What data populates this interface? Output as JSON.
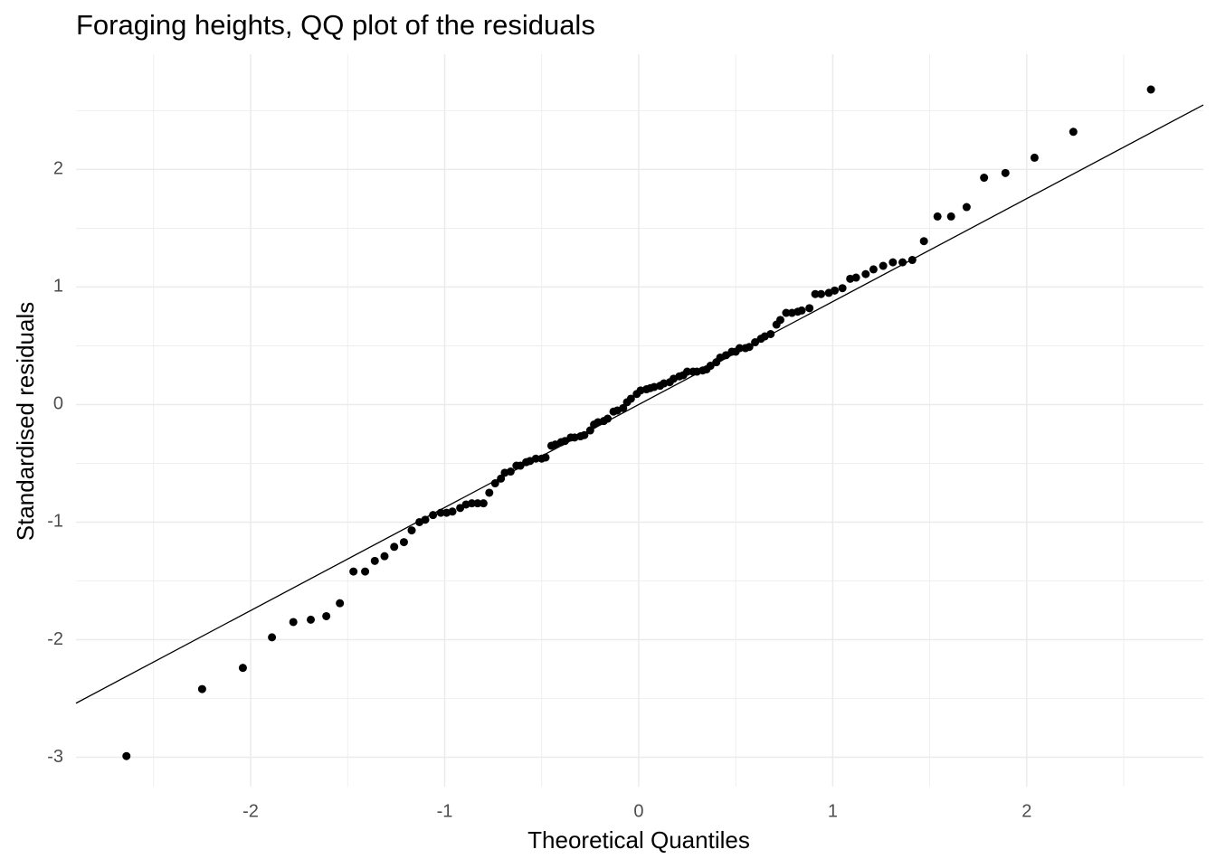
{
  "chart_data": {
    "type": "scatter",
    "title": "Foraging heights, QQ plot of the residuals",
    "x_label": "Theoretical Quantiles",
    "y_label": "Standardised residuals",
    "xlim": [
      -2.9,
      2.91
    ],
    "ylim": [
      -3.25,
      2.98
    ],
    "xticks": [
      -2,
      -1,
      0,
      1,
      2
    ],
    "yticks": [
      -3,
      -2,
      -1,
      0,
      1,
      2
    ],
    "xminor": [
      -2.5,
      -1.5,
      -0.5,
      0.5,
      1.5,
      2.5
    ],
    "yminor": [
      -2.5,
      -1.5,
      -0.5,
      0.5,
      1.5,
      2.5
    ],
    "grid": true,
    "color": "#000000",
    "reference_line": {
      "slope": 0.876,
      "intercept": 0.0
    },
    "x": [
      -2.64,
      -2.25,
      -2.04,
      -1.89,
      -1.78,
      -1.69,
      -1.61,
      -1.54,
      -1.47,
      -1.41,
      -1.36,
      -1.31,
      -1.26,
      -1.21,
      -1.17,
      -1.13,
      -1.1,
      -1.06,
      -1.02,
      -0.99,
      -0.96,
      -0.92,
      -0.89,
      -0.86,
      -0.83,
      -0.8,
      -0.77,
      -0.74,
      -0.71,
      -0.69,
      -0.66,
      -0.63,
      -0.61,
      -0.58,
      -0.56,
      -0.53,
      -0.5,
      -0.48,
      -0.45,
      -0.43,
      -0.4,
      -0.38,
      -0.35,
      -0.33,
      -0.3,
      -0.28,
      -0.25,
      -0.23,
      -0.21,
      -0.18,
      -0.16,
      -0.13,
      -0.11,
      -0.08,
      -0.06,
      -0.04,
      -0.01,
      0.01,
      0.04,
      0.06,
      0.08,
      0.11,
      0.13,
      0.16,
      0.18,
      0.21,
      0.23,
      0.25,
      0.28,
      0.3,
      0.33,
      0.35,
      0.37,
      0.4,
      0.42,
      0.45,
      0.48,
      0.5,
      0.52,
      0.55,
      0.57,
      0.6,
      0.63,
      0.65,
      0.68,
      0.71,
      0.73,
      0.76,
      0.79,
      0.82,
      0.84,
      0.88,
      0.91,
      0.94,
      0.98,
      1.01,
      1.05,
      1.09,
      1.12,
      1.17,
      1.21,
      1.26,
      1.31,
      1.36,
      1.41,
      1.47,
      1.54,
      1.61,
      1.69,
      1.78,
      1.89,
      2.04,
      2.24,
      2.64
    ],
    "values": [
      -2.99,
      -2.42,
      -2.24,
      -1.98,
      -1.85,
      -1.83,
      -1.8,
      -1.69,
      -1.42,
      -1.42,
      -1.33,
      -1.29,
      -1.21,
      -1.17,
      -1.07,
      -1.0,
      -0.98,
      -0.94,
      -0.92,
      -0.92,
      -0.91,
      -0.88,
      -0.85,
      -0.84,
      -0.84,
      -0.84,
      -0.75,
      -0.67,
      -0.63,
      -0.58,
      -0.57,
      -0.52,
      -0.52,
      -0.49,
      -0.48,
      -0.46,
      -0.46,
      -0.45,
      -0.35,
      -0.34,
      -0.32,
      -0.31,
      -0.28,
      -0.28,
      -0.27,
      -0.26,
      -0.22,
      -0.17,
      -0.15,
      -0.14,
      -0.12,
      -0.06,
      -0.05,
      -0.03,
      0.02,
      0.05,
      0.09,
      0.12,
      0.13,
      0.14,
      0.15,
      0.16,
      0.18,
      0.19,
      0.22,
      0.24,
      0.25,
      0.28,
      0.28,
      0.28,
      0.29,
      0.3,
      0.33,
      0.36,
      0.4,
      0.42,
      0.45,
      0.45,
      0.48,
      0.48,
      0.49,
      0.53,
      0.56,
      0.58,
      0.6,
      0.68,
      0.72,
      0.78,
      0.78,
      0.79,
      0.8,
      0.82,
      0.94,
      0.94,
      0.95,
      0.97,
      0.99,
      1.07,
      1.08,
      1.11,
      1.15,
      1.18,
      1.21,
      1.21,
      1.23,
      1.39,
      1.6,
      1.6,
      1.68,
      1.93,
      1.97,
      2.1,
      2.32,
      2.68
    ]
  }
}
